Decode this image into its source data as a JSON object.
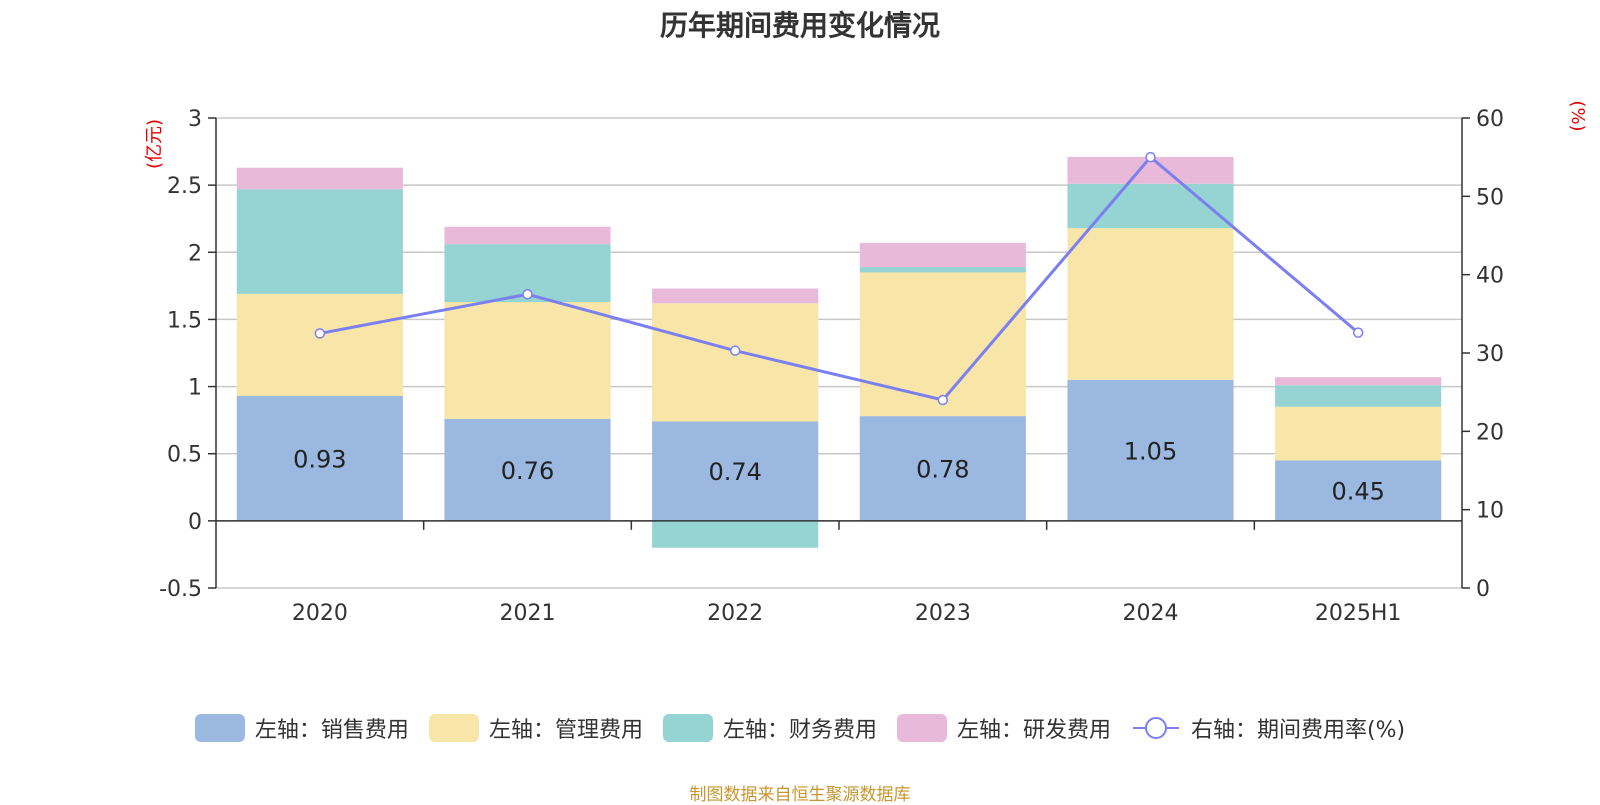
{
  "chart_data": {
    "type": "bar",
    "title": "历年期间费用变化情况",
    "categories": [
      "2020",
      "2021",
      "2022",
      "2023",
      "2024",
      "2025H1"
    ],
    "left_axis": {
      "unit": "(亿元)",
      "ylim": [
        -0.5,
        3
      ],
      "ticks": [
        -0.5,
        0,
        0.5,
        1,
        1.5,
        2,
        2.5,
        3
      ]
    },
    "right_axis": {
      "unit": "(%)",
      "ylim": [
        0,
        60
      ],
      "ticks": [
        0,
        10,
        20,
        30,
        40,
        50,
        60
      ]
    },
    "grid": true,
    "legend_position": "bottom",
    "series": [
      {
        "name": "左轴：销售费用",
        "type": "bar",
        "axis": "left",
        "color": "#9bb8e1",
        "values": [
          0.93,
          0.76,
          0.74,
          0.78,
          1.05,
          0.45
        ],
        "labels": [
          "0.93",
          "0.76",
          "0.74",
          "0.78",
          "1.05",
          "0.45"
        ]
      },
      {
        "name": "左轴：管理费用",
        "type": "bar",
        "axis": "left",
        "color": "#f8e6a8",
        "values": [
          0.76,
          0.87,
          0.88,
          1.07,
          1.13,
          0.4
        ]
      },
      {
        "name": "左轴：财务费用",
        "type": "bar",
        "axis": "left",
        "color": "#96d4d4",
        "values": [
          0.78,
          0.43,
          -0.2,
          0.04,
          0.33,
          0.16
        ]
      },
      {
        "name": "左轴：研发费用",
        "type": "bar",
        "axis": "left",
        "color": "#e9b9da",
        "values": [
          0.16,
          0.13,
          0.11,
          0.18,
          0.2,
          0.06
        ]
      },
      {
        "name": "右轴：期间费用率(%)",
        "type": "line",
        "axis": "right",
        "color": "#7b7ff0",
        "values": [
          32.5,
          37.5,
          30.3,
          24,
          55,
          32.6
        ]
      }
    ]
  },
  "source_note": "制图数据来自恒生聚源数据库"
}
